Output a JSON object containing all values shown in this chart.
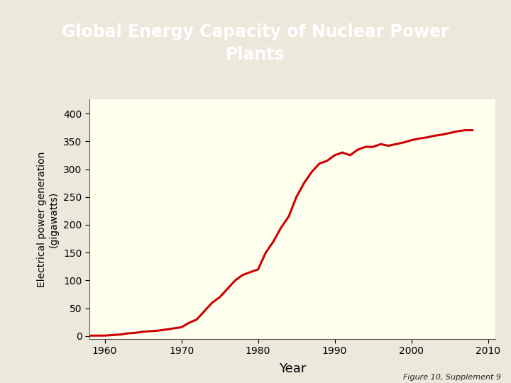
{
  "title_line1": "Global Energy Capacity of Nuclear Power",
  "title_line2": "Plants",
  "xlabel": "Year",
  "ylabel": "Electrical power generation\n(gigawatts)",
  "figure_caption": "Figure 10, Supplement 9",
  "header_bg_color": "#1e3f6e",
  "header_text_color": "#ffffff",
  "plot_bg_color": "#ffffee",
  "outer_bg_color": "#ede8dc",
  "chart_white_left_color": "#ffffff",
  "line_color": "#cc0000",
  "line_width": 2.2,
  "xlim": [
    1958,
    2011
  ],
  "ylim": [
    -5,
    425
  ],
  "xticks": [
    1960,
    1970,
    1980,
    1990,
    2000,
    2010
  ],
  "yticks": [
    0,
    50,
    100,
    150,
    200,
    250,
    300,
    350,
    400
  ],
  "x_data": [
    1957,
    1958,
    1959,
    1960,
    1961,
    1962,
    1963,
    1964,
    1965,
    1966,
    1967,
    1968,
    1969,
    1970,
    1971,
    1972,
    1973,
    1974,
    1975,
    1976,
    1977,
    1978,
    1979,
    1980,
    1981,
    1982,
    1983,
    1984,
    1985,
    1986,
    1987,
    1988,
    1989,
    1990,
    1991,
    1992,
    1993,
    1994,
    1995,
    1996,
    1997,
    1998,
    1999,
    2000,
    2001,
    2002,
    2003,
    2004,
    2005,
    2006,
    2007,
    2008
  ],
  "y_data": [
    1,
    1,
    1,
    1,
    2,
    3,
    5,
    6,
    8,
    9,
    10,
    12,
    14,
    16,
    24,
    30,
    45,
    60,
    70,
    85,
    100,
    110,
    115,
    120,
    150,
    170,
    195,
    215,
    250,
    275,
    295,
    310,
    315,
    325,
    330,
    325,
    335,
    340,
    340,
    345,
    342,
    345,
    348,
    352,
    355,
    357,
    360,
    362,
    365,
    368,
    370,
    370
  ]
}
